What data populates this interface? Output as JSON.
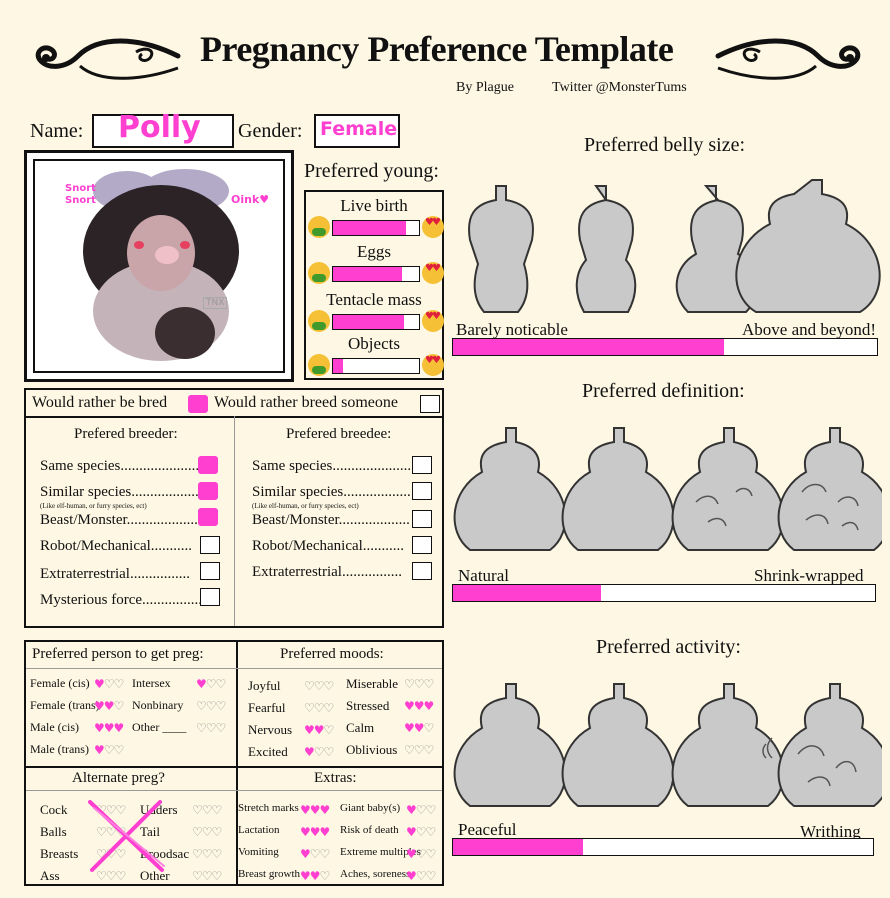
{
  "header": {
    "title": "Pregnancy Preference Template",
    "by": "By Plague",
    "twitter": "Twitter @MonsterTums"
  },
  "identity": {
    "name_label": "Name:",
    "name_value": "Polly",
    "gender_label": "Gender:",
    "gender_value": "Female"
  },
  "portrait": {
    "text_left": "Snort Snort",
    "text_right": "Oink♥",
    "signature": "TNX"
  },
  "young": {
    "title": "Preferred young:",
    "items": [
      {
        "label": "Live birth",
        "level": 0.85
      },
      {
        "label": "Eggs",
        "level": 0.8
      },
      {
        "label": "Tentacle mass",
        "level": 0.82
      },
      {
        "label": "Objects",
        "level": 0.12
      }
    ]
  },
  "bred": {
    "rather_bred": "Would rather be bred",
    "rather_breed": "Would rather breed someone",
    "rather_bred_checked": true,
    "rather_breed_checked": false
  },
  "breeder": {
    "title": "Prefered breeder:",
    "items": [
      {
        "label": "Same species.....................",
        "checked": true
      },
      {
        "label": "Similar species..................",
        "checked": true
      },
      {
        "label": "Beast/Monster...................",
        "checked": true
      },
      {
        "label": "Robot/Mechanical...........",
        "checked": false
      },
      {
        "label": "Extraterrestrial................",
        "checked": false
      },
      {
        "label": "Mysterious force................",
        "checked": false
      }
    ],
    "note": "(Like elf-human, or furry species, ect)"
  },
  "breedee": {
    "title": "Prefered breedee:",
    "items": [
      {
        "label": "Same species.....................",
        "checked": false
      },
      {
        "label": "Similar species..................",
        "checked": false
      },
      {
        "label": "Beast/Monster...................",
        "checked": false
      },
      {
        "label": "Robot/Mechanical...........",
        "checked": false
      },
      {
        "label": "Extraterrestrial................",
        "checked": false
      }
    ],
    "note": "(Like elf-human, or furry species, ect)"
  },
  "person": {
    "title": "Preferred person to get preg:",
    "left": [
      {
        "label": "Female (cis)",
        "level": 1
      },
      {
        "label": "Female (trans)",
        "level": 2
      },
      {
        "label": "Male (cis)",
        "level": 3
      },
      {
        "label": "Male (trans)",
        "level": 1
      }
    ],
    "right": [
      {
        "label": "Intersex",
        "level": 1
      },
      {
        "label": "Nonbinary",
        "level": 0
      },
      {
        "label": "Other ____",
        "level": 0
      }
    ]
  },
  "moods": {
    "title": "Preferred moods:",
    "left": [
      {
        "label": "Joyful",
        "level": 0
      },
      {
        "label": "Fearful",
        "level": 0
      },
      {
        "label": "Nervous",
        "level": 2
      },
      {
        "label": "Excited",
        "level": 1
      }
    ],
    "right": [
      {
        "label": "Miserable",
        "level": 0
      },
      {
        "label": "Stressed",
        "level": 3
      },
      {
        "label": "Calm",
        "level": 2
      },
      {
        "label": "Oblivious",
        "level": 0
      }
    ]
  },
  "alternate": {
    "title": "Alternate preg?",
    "left": [
      {
        "label": "Cock",
        "level": 0
      },
      {
        "label": "Balls",
        "level": 0
      },
      {
        "label": "Breasts",
        "level": 0
      },
      {
        "label": "Ass",
        "level": 0
      }
    ],
    "right": [
      {
        "label": "Udders",
        "level": 0
      },
      {
        "label": "Tail",
        "level": 0
      },
      {
        "label": "Broodsac",
        "level": 0
      },
      {
        "label": "Other",
        "level": 0
      }
    ]
  },
  "extras": {
    "title": "Extras:",
    "left": [
      {
        "label": "Stretch marks",
        "level": 3
      },
      {
        "label": "Lactation",
        "level": 3
      },
      {
        "label": "Vomiting",
        "level": 1
      },
      {
        "label": "Breast growth",
        "level": 2
      }
    ],
    "right": [
      {
        "label": "Giant baby(s)",
        "level": 1
      },
      {
        "label": "Risk of death",
        "level": 1
      },
      {
        "label": "Extreme multiples",
        "level": 1
      },
      {
        "label": "Aches, soreness",
        "level": 1
      }
    ]
  },
  "belly_size": {
    "title": "Preferred belly size:",
    "min_label": "Barely noticable",
    "max_label": "Above and beyond!",
    "level": 0.64
  },
  "definition": {
    "title": "Preferred definition:",
    "min_label": "Natural",
    "max_label": "Shrink-wrapped",
    "level": 0.35
  },
  "activity": {
    "title": "Preferred activity:",
    "min_label": "Peaceful",
    "max_label": "Writhing",
    "level": 0.31
  },
  "colors": {
    "accent": "#ff3fd0",
    "background": "#fdf7e3"
  }
}
